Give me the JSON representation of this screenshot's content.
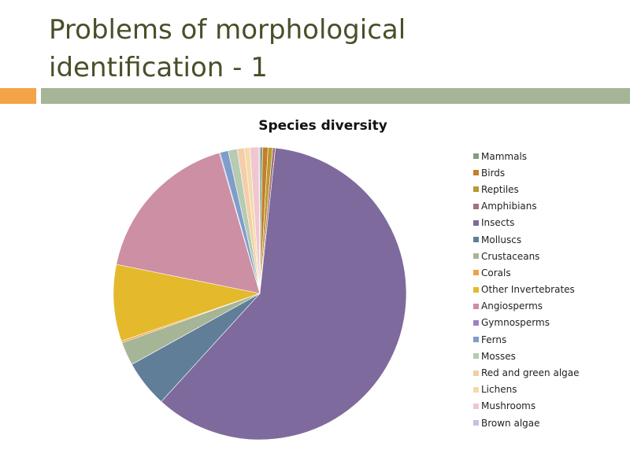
{
  "slide": {
    "title_line1": "Problems of morphological",
    "title_line2": "identification - 1"
  },
  "chart_data": {
    "type": "pie",
    "title": "Species diversity",
    "legend_position": "right",
    "categories": [
      "Mammals",
      "Birds",
      "Reptiles",
      "Amphibians",
      "Insects",
      "Molluscs",
      "Crustaceans",
      "Corals",
      "Other Invertebrates",
      "Angiosperms",
      "Gymnosperms",
      "Ferns",
      "Mosses",
      "Red and green algae",
      "Lichens",
      "Mushrooms",
      "Brown algae"
    ],
    "values": [
      0.3,
      0.6,
      0.5,
      0.3,
      60.3,
      5.2,
      2.6,
      0.2,
      8.5,
      17.4,
      0.1,
      0.9,
      1.0,
      0.8,
      0.6,
      1.0,
      0.1
    ],
    "colors": [
      "#7f9f7f",
      "#c47e2a",
      "#b99a2e",
      "#a8707a",
      "#7e6a9c",
      "#617e99",
      "#a6b596",
      "#f0a146",
      "#e4b92c",
      "#cc8fa3",
      "#9b84c0",
      "#7f9dca",
      "#b6cbb1",
      "#f4cda9",
      "#f2dba8",
      "#f0c6d0",
      "#c7c0e4"
    ]
  }
}
